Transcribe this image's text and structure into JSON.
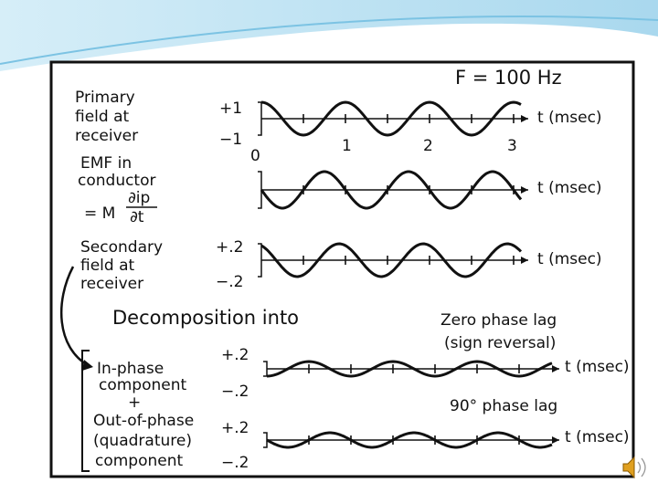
{
  "header": {
    "frequency": "F = 100 Hz"
  },
  "primary": {
    "label": [
      "Primary",
      "field at",
      "receiver"
    ],
    "amplitude": [
      "+1",
      "−1"
    ],
    "time_ticks": [
      "0",
      "1",
      "2",
      "3"
    ],
    "axis": "t (msec)"
  },
  "emf": {
    "label": [
      "EMF in",
      "conductor"
    ],
    "formula": {
      "lhs": "= M",
      "numerator": "∂ip",
      "denominator": "∂t"
    },
    "axis": "t (msec)"
  },
  "secondary": {
    "label": [
      "Secondary",
      "field at",
      "receiver"
    ],
    "amplitude": [
      "+.2",
      "−.2"
    ],
    "axis": "t (msec)"
  },
  "decomposition": {
    "title": "Decomposition into",
    "in_phase": {
      "note": [
        "Zero phase lag",
        "(sign reversal)"
      ],
      "label": [
        "In-phase",
        "component"
      ],
      "amplitude": [
        "+.2",
        "−.2"
      ],
      "axis": "t (msec)"
    },
    "plus": "+",
    "quadrature": {
      "note": "90° phase lag",
      "label": [
        "Out-of-phase",
        "(quadrature)",
        "component"
      ],
      "amplitude": [
        "+.2",
        "−.2"
      ],
      "axis": "t (msec)"
    }
  }
}
